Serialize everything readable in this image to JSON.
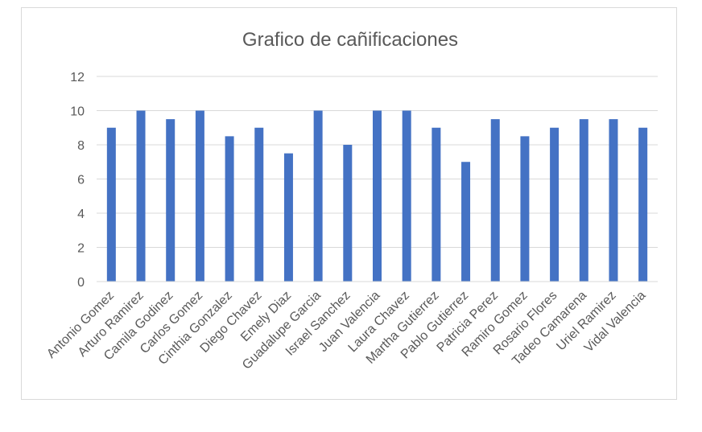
{
  "chart_data": {
    "type": "bar",
    "title": "Grafico de cañificaciones",
    "xlabel": "",
    "ylabel": "",
    "ylim": [
      0,
      12
    ],
    "yticks": [
      0,
      2,
      4,
      6,
      8,
      10,
      12
    ],
    "grid": true,
    "legend": "none",
    "bar_color": "#4472c4",
    "categories": [
      "Antonio Gomez",
      "Arturo Ramirez",
      "Camila Godinez",
      "Carlos Gomez",
      "Cinthia Gonzalez",
      "Diego Chavez",
      "Emely Diaz",
      "Guadalupe Garcia",
      "Israel Sanchez",
      "Juan Valencia",
      "Laura Chavez",
      "Martha Gutierrez",
      "Pablo Gutierrez",
      "Patricia Perez",
      "Ramiro Gomez",
      "Rosario Flores",
      "Tadeo Camarena",
      "Uriel Ramirez",
      "Vidal Valencia"
    ],
    "values": [
      9,
      10,
      9.5,
      10,
      8.5,
      9,
      7.5,
      10,
      8,
      10,
      10,
      9,
      7,
      9.5,
      8.5,
      9,
      9.5,
      9.5,
      9
    ]
  }
}
